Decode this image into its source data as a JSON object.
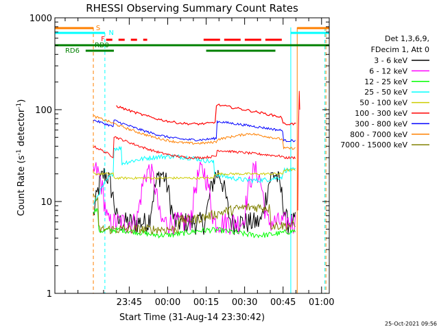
{
  "chart_data": {
    "type": "line",
    "title": "RHESSI Observing Summary Count Rates",
    "xlabel": "Start Time (31-Aug-14 23:30:42)",
    "ylabel_main": "Count Rate (s",
    "ylabel_sup1": "-1",
    "ylabel_mid": " detector",
    "ylabel_sup2": "-1",
    "ylabel_end": ")",
    "yscale": "log",
    "ylim": [
      1,
      1000
    ],
    "xlim_minutes": [
      -14,
      93
    ],
    "x_ticks": [
      {
        "label": "23:45",
        "t": 15
      },
      {
        "label": "00:00",
        "t": 30
      },
      {
        "label": "00:15",
        "t": 45
      },
      {
        "label": "00:30",
        "t": 60
      },
      {
        "label": "00:45",
        "t": 75
      },
      {
        "label": "01:00",
        "t": 90
      }
    ],
    "y_ticks": [
      {
        "label": "1",
        "v": 1
      },
      {
        "label": "10",
        "v": 10
      },
      {
        "label": "100",
        "v": 100
      },
      {
        "label": "1000",
        "v": 1000
      }
    ],
    "legend_header": [
      "Det 1,3,6,9,",
      "FDecim 1, Att 0"
    ],
    "series": [
      {
        "name": "3 - 6 keV",
        "color": "#000000",
        "key": "s3_6"
      },
      {
        "name": "6 - 12 keV",
        "color": "#ff00ff",
        "key": "s6_12"
      },
      {
        "name": "12 - 25 keV",
        "color": "#00ff00",
        "key": "s12_25"
      },
      {
        "name": "25 - 50 keV",
        "color": "#00ffff",
        "key": "s25_50"
      },
      {
        "name": "50 - 100 keV",
        "color": "#cccc00",
        "key": "s50_100"
      },
      {
        "name": "100 - 300 keV",
        "color": "#ff0000",
        "key": "s100_300"
      },
      {
        "name": "300 - 800 keV",
        "color": "#0000ff",
        "key": "s300_800"
      },
      {
        "name": "800 - 7000 keV",
        "color": "#ff8000",
        "key": "s800_7000"
      },
      {
        "name": "7000 - 15000 keV",
        "color": "#808000",
        "key": "s7000_15000"
      }
    ],
    "flags": [
      {
        "label": "S",
        "color": "#ff8000"
      },
      {
        "label": "N",
        "color": "#00ffff"
      },
      {
        "label": "F",
        "color": "#ff0000"
      },
      {
        "label": "RD0",
        "color": "#008000"
      },
      {
        "label": "RD6",
        "color": "#008000"
      }
    ],
    "footer_timestamp": "25-Oct-2021 09:56"
  }
}
